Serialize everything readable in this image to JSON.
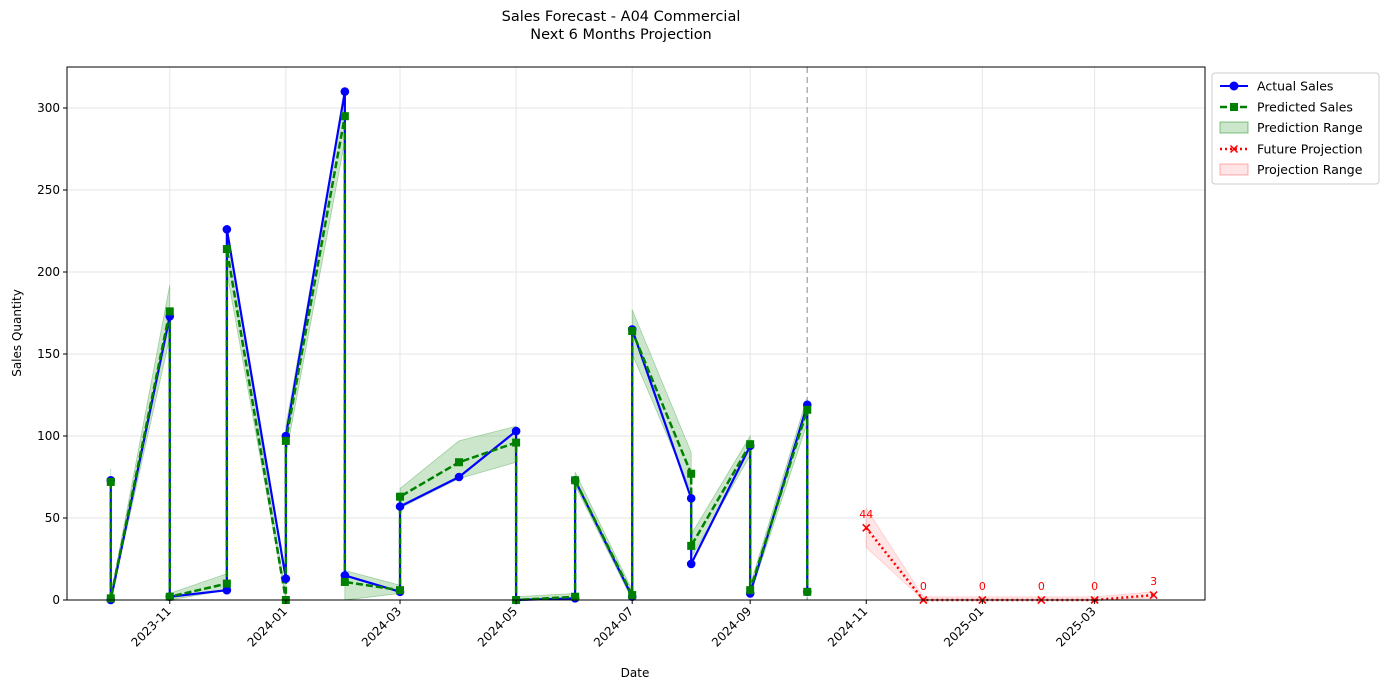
{
  "chart_data": {
    "type": "line",
    "title": "Sales Forecast - A04 Commercial",
    "subtitle": "Next 6 Months Projection",
    "xlabel": "Date",
    "ylabel": "Sales Quantity",
    "ylim": [
      0,
      325
    ],
    "xlim": [
      "2023-09-08",
      "2025-04-28"
    ],
    "yticks": [
      0,
      50,
      100,
      150,
      200,
      250,
      300
    ],
    "xticks": [
      "2023-11",
      "2024-01",
      "2024-03",
      "2024-05",
      "2024-07",
      "2024-09",
      "2024-11",
      "2025-01",
      "2025-03"
    ],
    "grid": true,
    "legend_position": "outside-top-right",
    "split_date": "2024-10-01",
    "series": [
      {
        "name": "Actual Sales",
        "color": "#0000ff",
        "marker": "circle",
        "line": "solid",
        "points": [
          [
            "2023-10-01",
            73
          ],
          [
            "2023-10-01",
            0
          ],
          [
            "2023-11-01",
            173
          ],
          [
            "2023-11-01",
            2
          ],
          [
            "2023-12-01",
            6
          ],
          [
            "2023-12-01",
            226
          ],
          [
            "2024-01-01",
            13
          ],
          [
            "2024-01-01",
            100
          ],
          [
            "2024-02-01",
            310
          ],
          [
            "2024-02-01",
            15
          ],
          [
            "2024-03-01",
            5
          ],
          [
            "2024-03-01",
            57
          ],
          [
            "2024-04-01",
            75
          ],
          [
            "2024-05-01",
            103
          ],
          [
            "2024-05-01",
            0
          ],
          [
            "2024-06-01",
            1
          ],
          [
            "2024-06-01",
            73
          ],
          [
            "2024-07-01",
            2
          ],
          [
            "2024-07-01",
            165
          ],
          [
            "2024-08-01",
            62
          ],
          [
            "2024-08-01",
            22
          ],
          [
            "2024-09-01",
            94
          ],
          [
            "2024-09-01",
            4
          ],
          [
            "2024-10-01",
            119
          ],
          [
            "2024-10-01",
            5
          ]
        ]
      },
      {
        "name": "Predicted Sales",
        "color": "#008000",
        "marker": "square",
        "line": "dashed",
        "points": [
          [
            "2023-10-01",
            72
          ],
          [
            "2023-10-01",
            1
          ],
          [
            "2023-11-01",
            176
          ],
          [
            "2023-11-01",
            2
          ],
          [
            "2023-12-01",
            10
          ],
          [
            "2023-12-01",
            214
          ],
          [
            "2024-01-01",
            0
          ],
          [
            "2024-01-01",
            97
          ],
          [
            "2024-02-01",
            295
          ],
          [
            "2024-02-01",
            11
          ],
          [
            "2024-03-01",
            6
          ],
          [
            "2024-03-01",
            63
          ],
          [
            "2024-04-01",
            84
          ],
          [
            "2024-05-01",
            96
          ],
          [
            "2024-05-01",
            0
          ],
          [
            "2024-06-01",
            2
          ],
          [
            "2024-06-01",
            73
          ],
          [
            "2024-07-01",
            3
          ],
          [
            "2024-07-01",
            164
          ],
          [
            "2024-08-01",
            77
          ],
          [
            "2024-08-01",
            33
          ],
          [
            "2024-09-01",
            95
          ],
          [
            "2024-09-01",
            6
          ],
          [
            "2024-10-01",
            116
          ],
          [
            "2024-10-01",
            5
          ]
        ]
      },
      {
        "name": "Prediction Range",
        "color": "#008000",
        "type": "area",
        "points": [
          [
            "2023-10-01",
            65,
            80
          ],
          [
            "2023-10-01",
            0,
            3
          ],
          [
            "2023-11-01",
            160,
            192
          ],
          [
            "2023-11-01",
            0,
            4
          ],
          [
            "2023-12-01",
            6,
            16
          ],
          [
            "2023-12-01",
            200,
            228
          ],
          [
            "2024-01-01",
            0,
            3
          ],
          [
            "2024-01-01",
            88,
            106
          ],
          [
            "2024-02-01",
            280,
            310
          ],
          [
            "2024-02-01",
            0,
            18
          ],
          [
            "2024-03-01",
            4,
            9
          ],
          [
            "2024-03-01",
            56,
            68
          ],
          [
            "2024-04-01",
            74,
            97
          ],
          [
            "2024-05-01",
            84,
            106
          ],
          [
            "2024-05-01",
            0,
            2
          ],
          [
            "2024-06-01",
            0,
            4
          ],
          [
            "2024-06-01",
            70,
            78
          ],
          [
            "2024-07-01",
            0,
            6
          ],
          [
            "2024-07-01",
            150,
            177
          ],
          [
            "2024-08-01",
            66,
            90
          ],
          [
            "2024-08-01",
            26,
            40
          ],
          [
            "2024-09-01",
            88,
            100
          ],
          [
            "2024-09-01",
            3,
            9
          ],
          [
            "2024-10-01",
            108,
            124
          ],
          [
            "2024-10-01",
            3,
            8
          ]
        ]
      },
      {
        "name": "Future Projection",
        "color": "#ff0000",
        "marker": "x",
        "line": "dotted",
        "points": [
          [
            "2024-11-01",
            44
          ],
          [
            "2024-12-01",
            0
          ],
          [
            "2025-01-01",
            0
          ],
          [
            "2025-02-01",
            0
          ],
          [
            "2025-03-01",
            0
          ],
          [
            "2025-04-01",
            3
          ]
        ],
        "labels": [
          "44",
          "0",
          "0",
          "0",
          "0",
          "3"
        ]
      },
      {
        "name": "Projection Range",
        "color": "#ff0000",
        "type": "area",
        "points": [
          [
            "2024-11-01",
            32,
            56
          ],
          [
            "2024-12-01",
            0,
            2
          ],
          [
            "2025-01-01",
            0,
            2
          ],
          [
            "2025-02-01",
            0,
            2
          ],
          [
            "2025-03-01",
            0,
            2
          ],
          [
            "2025-04-01",
            1,
            5
          ]
        ]
      }
    ]
  }
}
